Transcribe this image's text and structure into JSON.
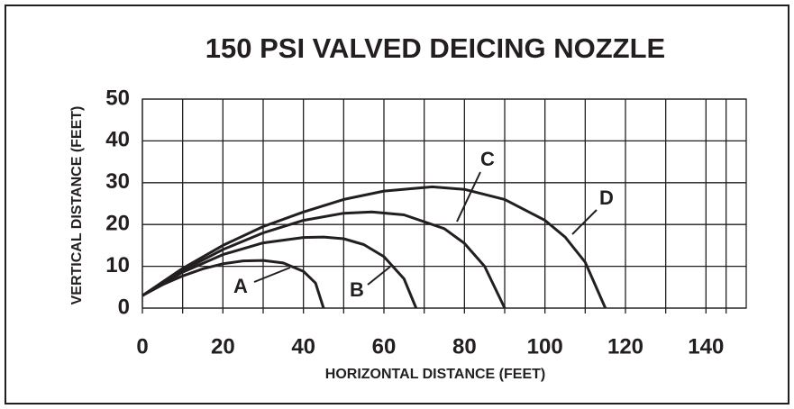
{
  "chart_data": {
    "type": "line",
    "title": "150 PSI VALVED DEICING NOZZLE",
    "xlabel": "HORIZONTAL DISTANCE (FEET)",
    "ylabel": "VERTICAL DISTANCE (FEET)",
    "xlim": [
      0,
      150
    ],
    "ylim": [
      0,
      50
    ],
    "xticks": [
      0,
      20,
      40,
      60,
      80,
      100,
      120,
      140
    ],
    "yticks": [
      0,
      10,
      20,
      30,
      40,
      50
    ],
    "grid": true,
    "series": [
      {
        "name": "A",
        "color": "#231f20",
        "x": [
          0,
          5,
          10,
          15,
          20,
          25,
          30,
          35,
          40,
          43,
          45
        ],
        "values": [
          3,
          5.6,
          7.7,
          9.4,
          10.6,
          11.3,
          11.4,
          10.8,
          8.8,
          6,
          0
        ]
      },
      {
        "name": "B",
        "color": "#231f20",
        "x": [
          0,
          10,
          20,
          30,
          40,
          45,
          50,
          55,
          60,
          65,
          68
        ],
        "values": [
          3,
          8.6,
          12.8,
          15.6,
          16.9,
          17,
          16.6,
          15.2,
          12.3,
          7,
          0
        ]
      },
      {
        "name": "C",
        "color": "#231f20",
        "x": [
          0,
          10,
          20,
          30,
          40,
          50,
          57,
          65,
          75,
          80,
          85,
          90
        ],
        "values": [
          3,
          9,
          14,
          18,
          21,
          22.7,
          23,
          22.3,
          19,
          15.5,
          10,
          0
        ]
      },
      {
        "name": "D",
        "color": "#231f20",
        "x": [
          0,
          10,
          20,
          30,
          40,
          50,
          60,
          72,
          80,
          90,
          100,
          105,
          110,
          115
        ],
        "values": [
          3,
          9.5,
          15,
          19.5,
          23,
          26,
          28,
          29,
          28.4,
          26,
          21,
          17,
          11,
          0
        ]
      }
    ]
  }
}
